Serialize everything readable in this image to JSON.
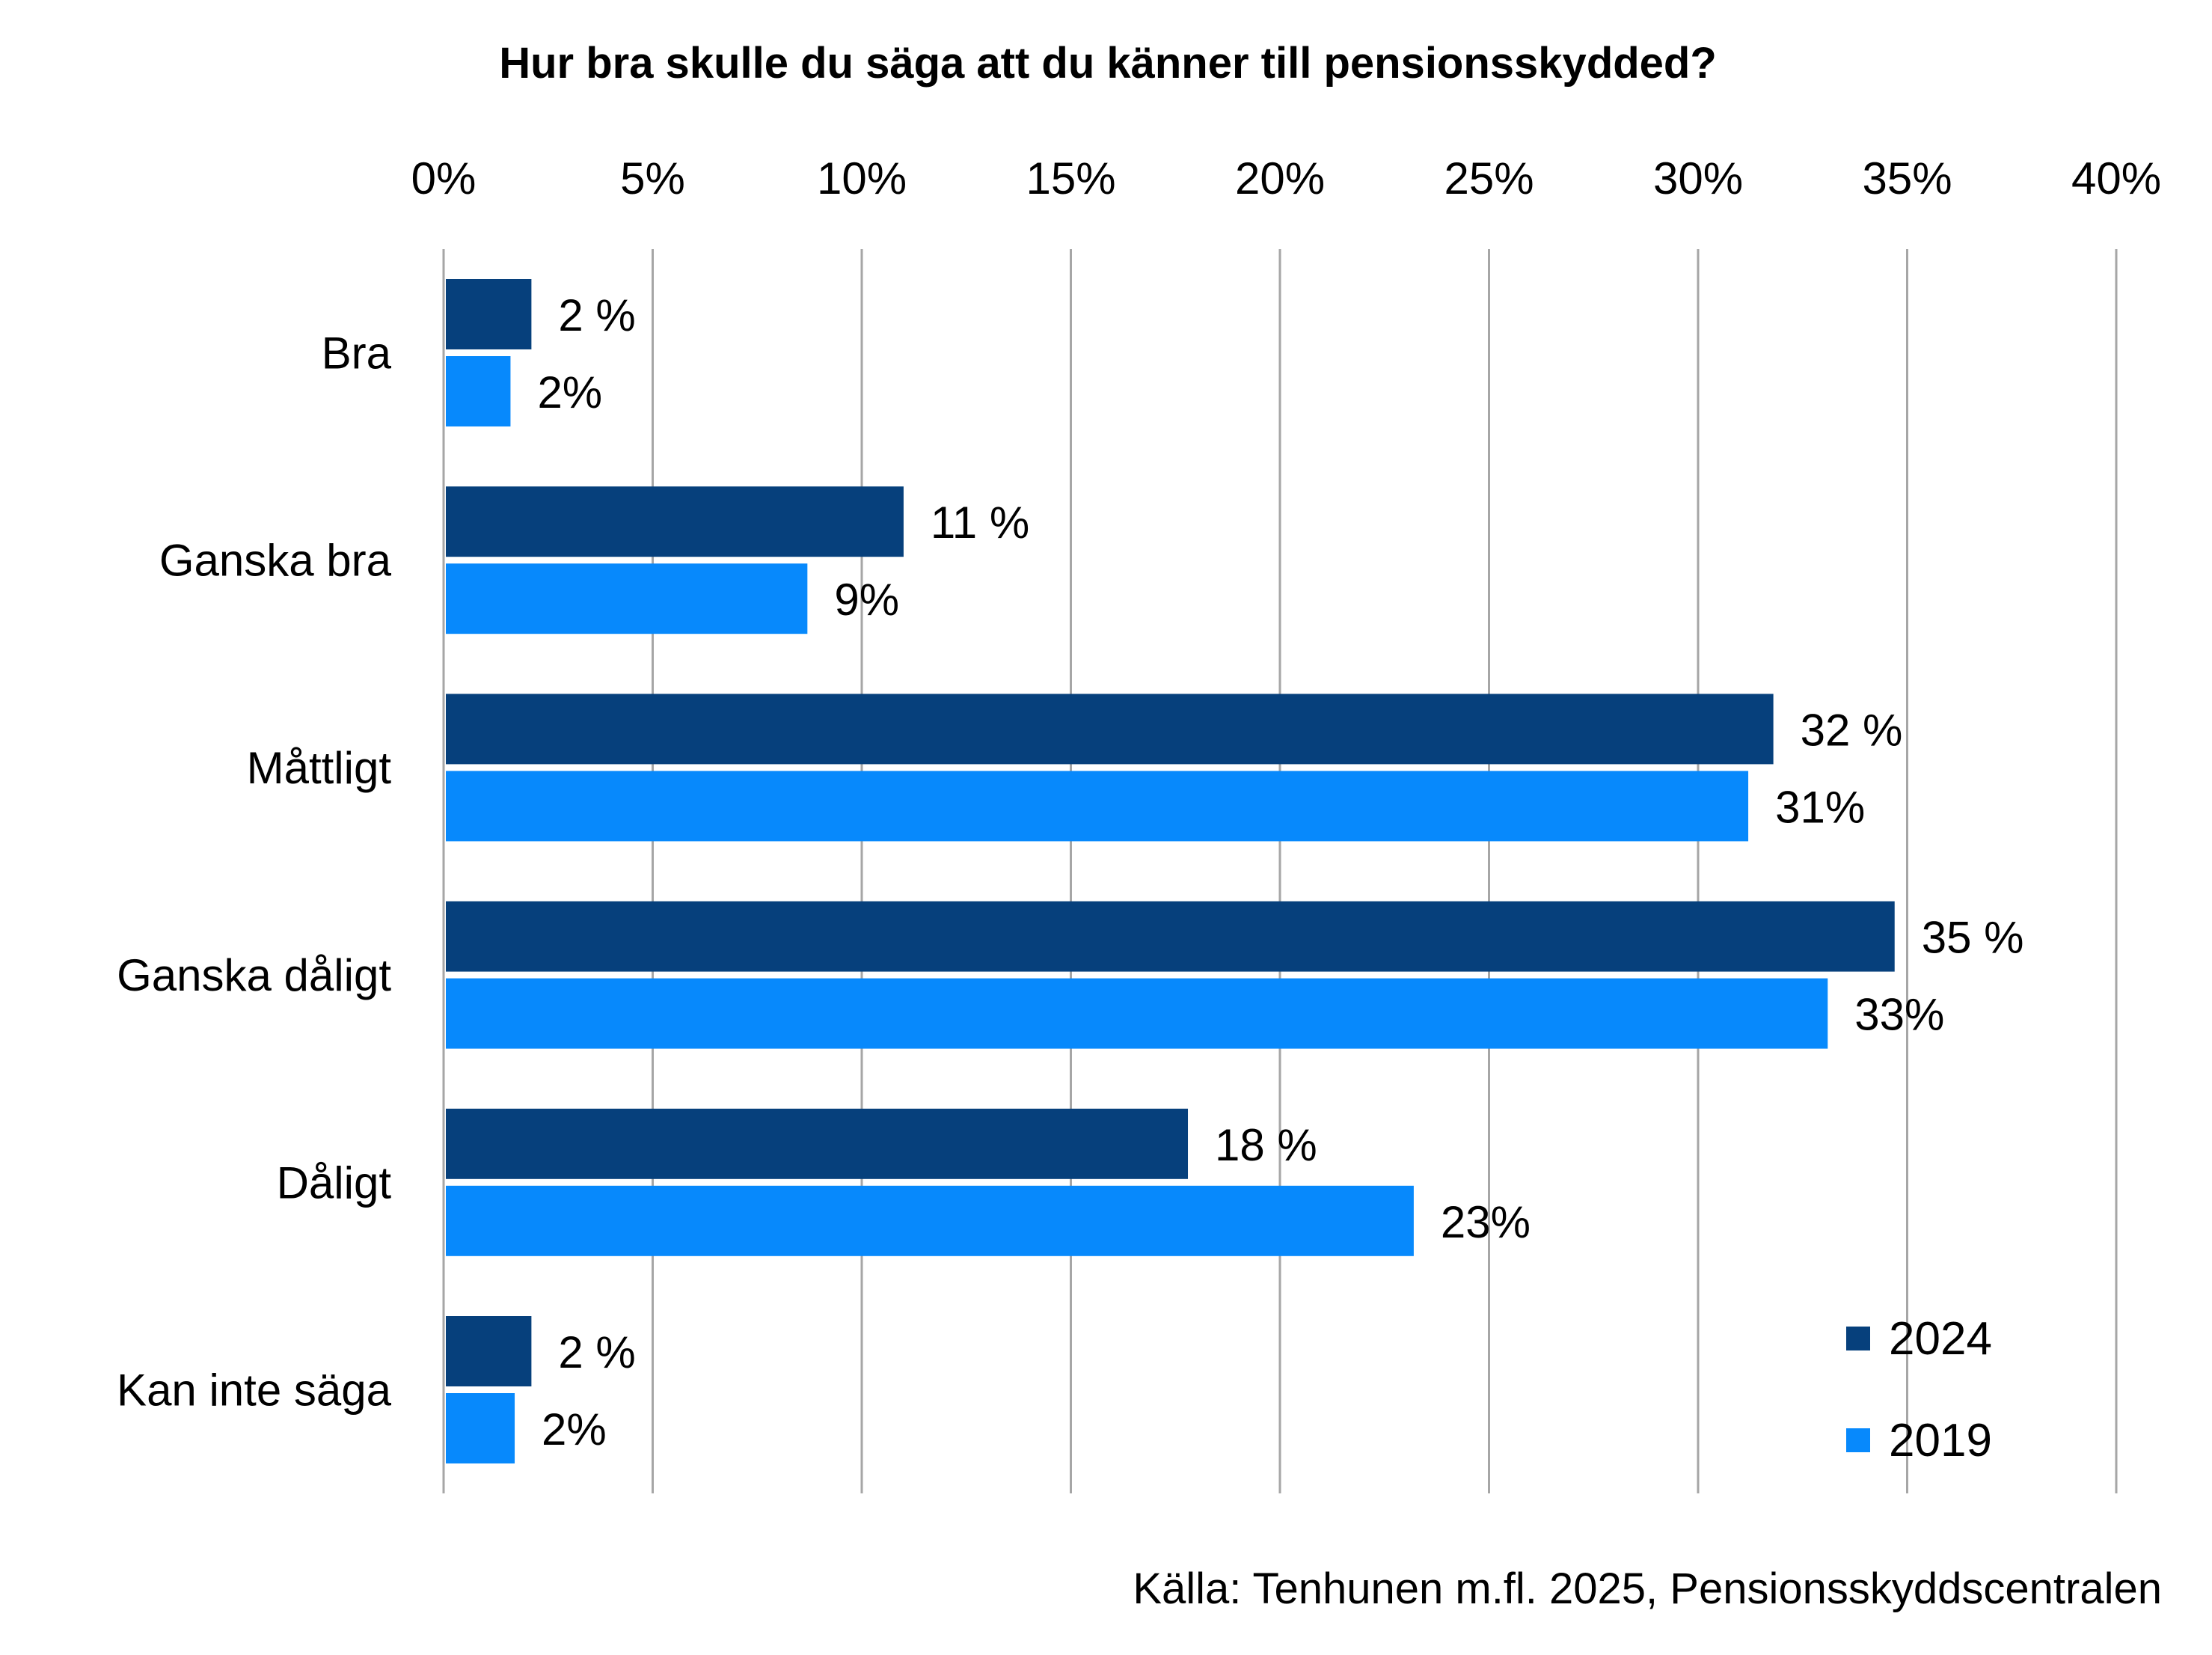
{
  "chart_data": {
    "type": "bar",
    "orientation": "horizontal",
    "title": "Hur bra skulle du säga att du känner till pensionsskydded?",
    "categories": [
      "Bra",
      "Ganska bra",
      "Måttligt",
      "Ganska dåligt",
      "Dåligt",
      "Kan inte säga"
    ],
    "series": [
      {
        "name": "2024",
        "color": "#06407c",
        "values": [
          2.1,
          11.0,
          31.8,
          34.7,
          17.8,
          2.1
        ],
        "labels": [
          "2 %",
          "11 %",
          "32 %",
          "35 %",
          "18 %",
          "2 %"
        ]
      },
      {
        "name": "2019",
        "color": "#0789fc",
        "values": [
          1.6,
          8.7,
          31.2,
          33.1,
          23.2,
          1.7
        ],
        "labels": [
          "2%",
          "9%",
          "31%",
          "33%",
          "23%",
          "2%"
        ]
      }
    ],
    "xlim": [
      0,
      40
    ],
    "xticks": [
      0,
      5,
      10,
      15,
      20,
      25,
      30,
      35,
      40
    ],
    "xtick_labels": [
      "0%",
      "5%",
      "10%",
      "15%",
      "20%",
      "25%",
      "30%",
      "35%",
      "40%"
    ],
    "xaxis_position": "top",
    "grid": true,
    "gridline_color": "#a6a6a6",
    "legend": {
      "position": "bottom-right",
      "entries": [
        "2024",
        "2019"
      ]
    },
    "source": "Källa: Tenhunen m.fl. 2025, Pensionsskyddscentralen"
  }
}
